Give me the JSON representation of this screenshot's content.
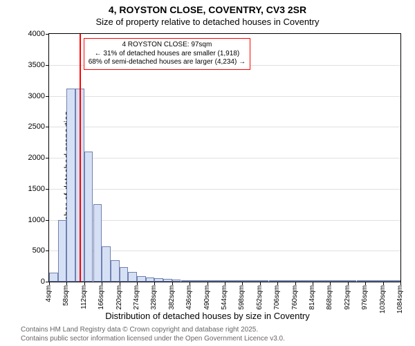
{
  "title_main": "4, ROYSTON CLOSE, COVENTRY, CV3 2SR",
  "title_sub": "Size of property relative to detached houses in Coventry",
  "ylabel": "Number of detached properties",
  "xlabel": "Distribution of detached houses by size in Coventry",
  "footer_line1": "Contains HM Land Registry data © Crown copyright and database right 2025.",
  "footer_line2": "Contains public sector information licensed under the Open Government Licence v3.0.",
  "chart": {
    "type": "histogram",
    "background_color": "#ffffff",
    "grid_color": "#e0e0e0",
    "axis_color": "#000000",
    "bar_fill": "#d6e0f5",
    "bar_border": "#7080b0",
    "marker_color": "#ff0000",
    "anno_border": "#ff0000",
    "ylim": [
      0,
      4000
    ],
    "ytick_step": 500,
    "xticks": [
      4,
      58,
      112,
      166,
      220,
      274,
      328,
      382,
      436,
      490,
      544,
      598,
      652,
      706,
      760,
      814,
      868,
      922,
      976,
      1030,
      1084
    ],
    "xtick_unit": "sqm",
    "marker_x": 97,
    "bin_start": 4,
    "bin_width": 27,
    "values": [
      140,
      1000,
      3120,
      3120,
      2100,
      1250,
      570,
      350,
      240,
      160,
      95,
      70,
      55,
      40,
      32,
      28,
      26,
      24,
      22,
      20,
      18,
      16,
      14,
      12,
      10,
      8,
      6,
      5,
      4,
      3,
      2,
      2,
      2,
      1,
      1,
      1,
      1,
      1,
      0,
      0
    ],
    "annotation": {
      "line1": "4 ROYSTON CLOSE: 97sqm",
      "line2": "← 31% of detached houses are smaller (1,918)",
      "line3": "68% of semi-detached houses are larger (4,234) →"
    },
    "title_fontsize": 14,
    "subtitle_fontsize": 13,
    "label_fontsize": 13,
    "tick_fontsize": 11,
    "anno_fontsize": 10
  }
}
